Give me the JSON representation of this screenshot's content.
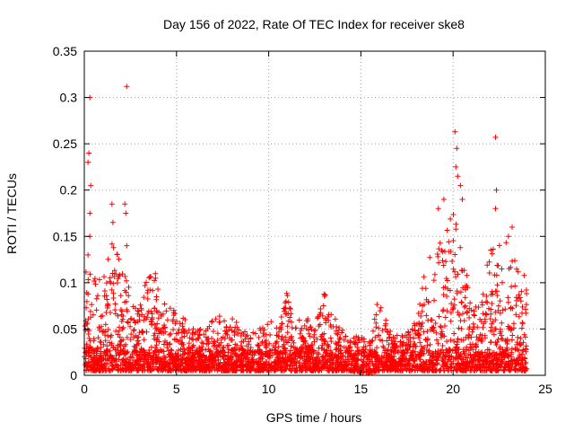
{
  "chart_data": {
    "type": "scatter",
    "title": "Day 156 of 2022, Rate Of TEC Index for receiver ske8",
    "xlabel": "GPS time / hours",
    "ylabel": "ROTI / TECUs",
    "xlim": [
      0,
      25
    ],
    "ylim": [
      0,
      0.35
    ],
    "x_ticks": [
      "0",
      "5",
      "10",
      "15",
      "20",
      "25"
    ],
    "y_ticks": [
      "0",
      "0.05",
      "0.1",
      "0.15",
      "0.2",
      "0.25",
      "0.3",
      "0.35"
    ],
    "grid": true,
    "marker": "+",
    "color": "#ff0000",
    "series": [
      {
        "envelope": {
          "x": [
            0,
            0.5,
            1,
            1.5,
            2,
            2.5,
            3,
            3.5,
            4,
            4.5,
            5,
            5.5,
            6,
            6.5,
            7,
            7.5,
            8,
            8.5,
            9,
            9.5,
            10,
            10.5,
            11,
            11.5,
            12,
            12.5,
            13,
            13.5,
            14,
            14.5,
            15,
            15.5,
            16,
            16.5,
            17,
            17.5,
            18,
            18.5,
            19,
            19.5,
            20,
            20.5,
            21,
            21.5,
            22,
            22.5,
            23,
            23.5,
            24
          ],
          "y_max": [
            0.12,
            0.11,
            0.1,
            0.15,
            0.13,
            0.09,
            0.08,
            0.11,
            0.11,
            0.08,
            0.07,
            0.06,
            0.05,
            0.05,
            0.06,
            0.07,
            0.065,
            0.05,
            0.045,
            0.05,
            0.06,
            0.06,
            0.09,
            0.06,
            0.065,
            0.05,
            0.09,
            0.065,
            0.05,
            0.04,
            0.045,
            0.04,
            0.09,
            0.05,
            0.045,
            0.045,
            0.06,
            0.12,
            0.15,
            0.14,
            0.19,
            0.14,
            0.08,
            0.075,
            0.14,
            0.14,
            0.15,
            0.13,
            0.1
          ],
          "y_min": [
            0.005,
            0.005,
            0.005,
            0.005,
            0.005,
            0.005,
            0.005,
            0.005,
            0.005,
            0.005,
            0.005,
            0.005,
            0.005,
            0.005,
            0.005,
            0.005,
            0.005,
            0.005,
            0.005,
            0.005,
            0.005,
            0.005,
            0.005,
            0.005,
            0.005,
            0.005,
            0.005,
            0.005,
            0.005,
            0.005,
            0.003,
            0.003,
            0.005,
            0.005,
            0.005,
            0.005,
            0.005,
            0.005,
            0.005,
            0.005,
            0.005,
            0.005,
            0.005,
            0.005,
            0.005,
            0.005,
            0.005,
            0.005,
            0.005
          ]
        },
        "outliers": [
          {
            "x": 0.3,
            "y": 0.3
          },
          {
            "x": 0.25,
            "y": 0.24
          },
          {
            "x": 0.2,
            "y": 0.23
          },
          {
            "x": 0.35,
            "y": 0.205
          },
          {
            "x": 0.3,
            "y": 0.175
          },
          {
            "x": 0.3,
            "y": 0.15
          },
          {
            "x": 0.2,
            "y": 0.13
          },
          {
            "x": 1.5,
            "y": 0.185
          },
          {
            "x": 1.55,
            "y": 0.165
          },
          {
            "x": 2.3,
            "y": 0.312
          },
          {
            "x": 2.2,
            "y": 0.185
          },
          {
            "x": 2.25,
            "y": 0.175
          },
          {
            "x": 2.3,
            "y": 0.14
          },
          {
            "x": 19.2,
            "y": 0.18
          },
          {
            "x": 19.5,
            "y": 0.19
          },
          {
            "x": 20.1,
            "y": 0.263
          },
          {
            "x": 20.2,
            "y": 0.245
          },
          {
            "x": 20.15,
            "y": 0.225
          },
          {
            "x": 20.25,
            "y": 0.215
          },
          {
            "x": 20.4,
            "y": 0.205
          },
          {
            "x": 20.5,
            "y": 0.19
          },
          {
            "x": 22.3,
            "y": 0.257
          },
          {
            "x": 22.35,
            "y": 0.2
          },
          {
            "x": 22.3,
            "y": 0.18
          },
          {
            "x": 23.2,
            "y": 0.16
          },
          {
            "x": 23.0,
            "y": 0.15
          }
        ]
      }
    ]
  }
}
